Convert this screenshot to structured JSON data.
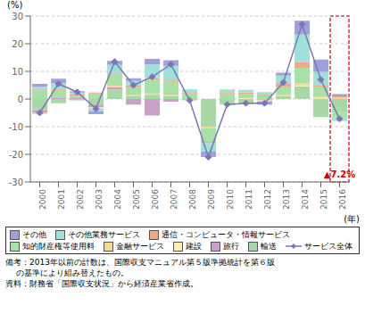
{
  "chart_data": {
    "type": "bar",
    "stacked": true,
    "grid": true,
    "xlabel": "(年)",
    "ylabel": "(%)",
    "categories": [
      2000,
      2001,
      2002,
      2003,
      2004,
      2005,
      2006,
      2007,
      2008,
      2009,
      2010,
      2011,
      2012,
      2013,
      2014,
      2015,
      2016
    ],
    "series": [
      {
        "name": "輸送",
        "color": "#a8d8a8",
        "values": [
          -4.0,
          -1.5,
          -0.5,
          -2.0,
          3.5,
          1.0,
          1.5,
          1.0,
          -0.5,
          -10.0,
          -2.0,
          -1.5,
          -0.5,
          1.0,
          4.5,
          -6.5,
          -5.0
        ]
      },
      {
        "name": "旅行",
        "color": "#c8a0c8",
        "values": [
          -1.0,
          0.3,
          0.3,
          -1.0,
          0.8,
          -2.0,
          -6.0,
          -1.0,
          0.0,
          0.0,
          0.0,
          0.0,
          0.0,
          0.0,
          0.0,
          0.0,
          0.0
        ]
      },
      {
        "name": "建設",
        "color": "#f8f0b0",
        "values": [
          0.0,
          0.0,
          0.0,
          0.0,
          0.0,
          0.0,
          0.0,
          0.0,
          0.0,
          0.0,
          0.0,
          0.3,
          0.0,
          0.0,
          0.3,
          0.3,
          0.0
        ]
      },
      {
        "name": "金融サービス",
        "color": "#f8d898",
        "values": [
          -0.5,
          0.0,
          0.0,
          -0.5,
          0.5,
          0.5,
          0.5,
          0.5,
          0.0,
          -0.5,
          0.0,
          -0.5,
          -0.5,
          0.5,
          1.0,
          0.5,
          0.5
        ]
      },
      {
        "name": "知的財産権等使用料",
        "color": "#a8e0a8",
        "values": [
          3.0,
          3.0,
          1.0,
          2.0,
          4.0,
          3.0,
          5.0,
          5.0,
          2.0,
          -5.0,
          2.0,
          1.5,
          1.0,
          3.0,
          5.5,
          3.5,
          -2.0
        ]
      },
      {
        "name": "通信・コンピュータ・情報サービス",
        "color": "#f0a888",
        "values": [
          0.5,
          0.5,
          0.5,
          0.3,
          0.5,
          0.5,
          0.5,
          0.5,
          0.5,
          -0.5,
          0.5,
          0.5,
          0.5,
          1.0,
          2.0,
          0.5,
          0.5
        ]
      },
      {
        "name": "その他業務サービス",
        "color": "#a0e0d8",
        "values": [
          1.0,
          2.0,
          0.5,
          -1.0,
          3.0,
          1.5,
          5.0,
          5.0,
          1.0,
          -3.0,
          1.0,
          1.0,
          1.0,
          3.0,
          10.0,
          5.0,
          -1.0
        ]
      },
      {
        "name": "その他",
        "color": "#a0a0d8",
        "values": [
          1.0,
          1.5,
          0.5,
          -1.0,
          1.5,
          1.0,
          2.0,
          2.0,
          0.0,
          -2.0,
          0.0,
          0.0,
          -1.0,
          1.0,
          5.0,
          4.5,
          0.8
        ]
      },
      {
        "name": "サービス全体",
        "type": "line",
        "color": "#7878b8",
        "marker": "diamond",
        "values": [
          -5.0,
          5.5,
          2.5,
          -3.5,
          13.5,
          5.0,
          8.0,
          12.5,
          -0.5,
          -21.0,
          -2.0,
          -1.5,
          -1.5,
          6.0,
          27.0,
          7.0,
          -7.2
        ]
      }
    ],
    "ylim": [
      -30,
      30
    ],
    "yticks": [
      -30,
      -20,
      -10,
      0,
      10,
      20,
      30
    ],
    "annotations": [
      {
        "text": "▲7.2%",
        "color": "#cc0000",
        "x": 2016
      }
    ],
    "notes": [
      "備考：2013年以前の計数は、国際収支マニュアル第５版準拠統計を第６版",
      "の基準により組み替えたもの。"
    ],
    "source": "資料：財務省「国際収支状況」から経済産業省作成。"
  }
}
